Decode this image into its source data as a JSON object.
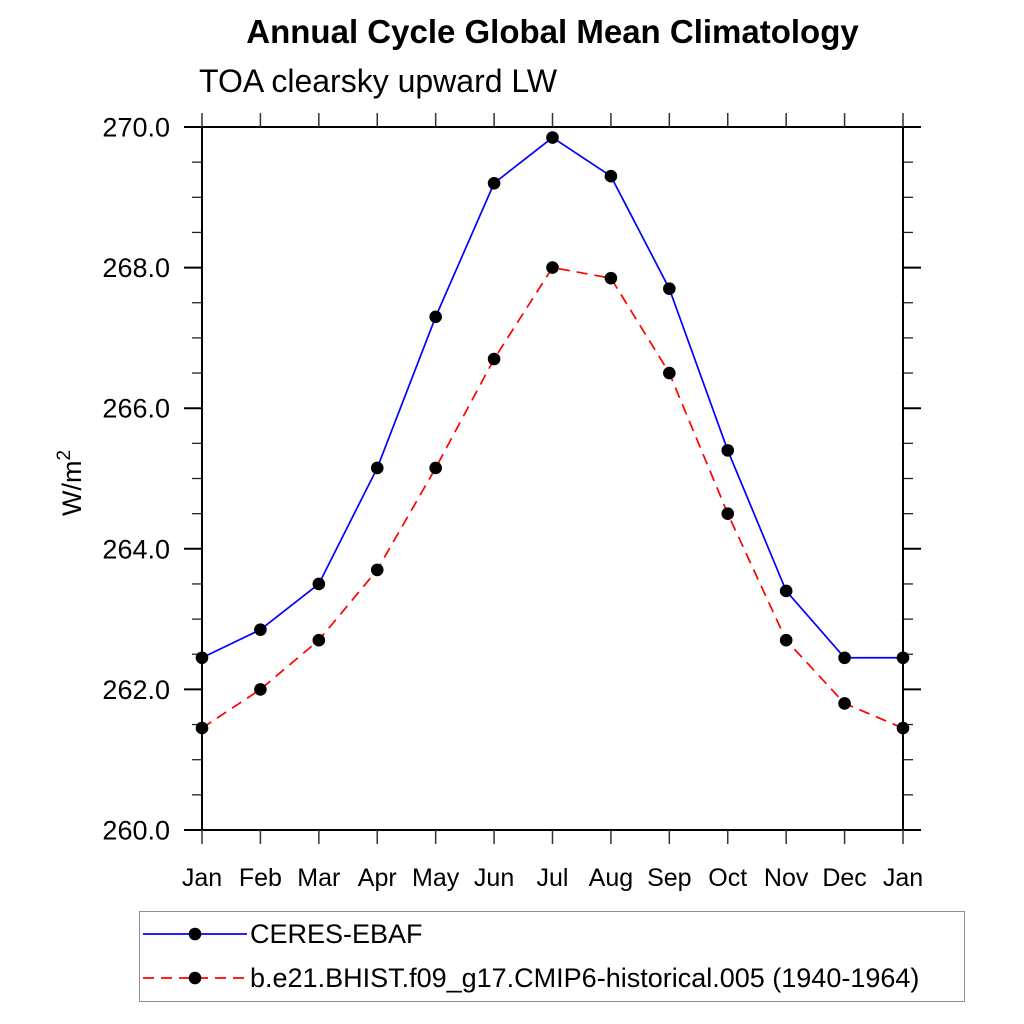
{
  "chart_data": {
    "type": "line",
    "title": "Annual Cycle Global Mean Climatology",
    "subtitle": "TOA clearsky upward LW",
    "ylabel": "W/m²",
    "categories": [
      "Jan",
      "Feb",
      "Mar",
      "Apr",
      "May",
      "Jun",
      "Jul",
      "Aug",
      "Sep",
      "Oct",
      "Nov",
      "Dec",
      "Jan"
    ],
    "ylim": [
      260.0,
      270.0
    ],
    "ytick_major_step": 2.0,
    "ytick_minor_step": 0.5,
    "ytick_labels": [
      "260.0",
      "262.0",
      "264.0",
      "266.0",
      "268.0",
      "270.0"
    ],
    "grid": false,
    "legend_position": "bottom-left-box",
    "series": [
      {
        "name": "CERES-EBAF",
        "color": "#0000ff",
        "line_style": "solid",
        "marker": "filled-circle",
        "marker_color": "#000000",
        "values": [
          262.45,
          262.85,
          263.5,
          265.15,
          267.3,
          269.2,
          269.85,
          269.3,
          267.7,
          265.4,
          263.4,
          262.45,
          262.45
        ]
      },
      {
        "name": "b.e21.BHIST.f09_g17.CMIP6-historical.005 (1940-1964)",
        "color": "#ff0000",
        "line_style": "dashed",
        "marker": "filled-circle",
        "marker_color": "#000000",
        "values": [
          261.45,
          262.0,
          262.7,
          263.7,
          265.15,
          266.7,
          268.0,
          267.85,
          266.5,
          264.5,
          262.7,
          261.8,
          261.45
        ]
      }
    ]
  }
}
